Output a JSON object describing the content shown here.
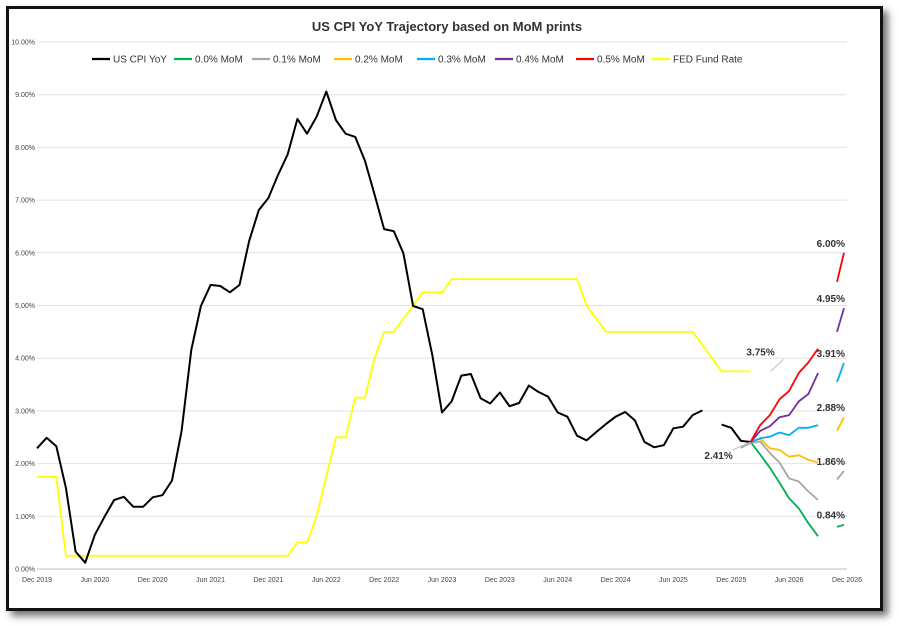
{
  "chart_data": {
    "type": "line",
    "title": "US CPI YoY Trajectory based on MoM prints",
    "xlabel": "",
    "ylabel": "",
    "ylim": [
      0,
      10
    ],
    "y_ticks": [
      "0.00%",
      "1.00%",
      "2.00%",
      "3.00%",
      "4.00%",
      "5.00%",
      "6.00%",
      "7.00%",
      "8.00%",
      "9.00%",
      "10.00%"
    ],
    "x_range_months": [
      0,
      84
    ],
    "x_ticks": [
      {
        "m": 0,
        "label": "Dec 2019"
      },
      {
        "m": 6,
        "label": "Jun 2020"
      },
      {
        "m": 12,
        "label": "Dec 2020"
      },
      {
        "m": 18,
        "label": "Jun 2021"
      },
      {
        "m": 24,
        "label": "Dec 2021"
      },
      {
        "m": 30,
        "label": "Jun 2022"
      },
      {
        "m": 36,
        "label": "Dec 2022"
      },
      {
        "m": 42,
        "label": "Jun 2023"
      },
      {
        "m": 48,
        "label": "Dec 2023"
      },
      {
        "m": 54,
        "label": "Jun 2024"
      },
      {
        "m": 60,
        "label": "Dec 2024"
      },
      {
        "m": 66,
        "label": "Jun 2025"
      },
      {
        "m": 72,
        "label": "Dec 2025"
      },
      {
        "m": 78,
        "label": "Jun 2026"
      },
      {
        "m": 84,
        "label": "Dec 2026"
      }
    ],
    "series": [
      {
        "name": "US CPI YoY",
        "color": "#000000",
        "start": 0,
        "values": [
          2.29,
          2.49,
          2.33,
          1.54,
          0.33,
          0.12,
          0.65,
          0.99,
          1.31,
          1.37,
          1.18,
          1.18,
          1.36,
          1.4,
          1.68,
          2.62,
          4.16,
          4.99,
          5.39,
          5.37,
          5.25,
          5.39,
          6.22,
          6.81,
          7.04,
          7.48,
          7.87,
          8.54,
          8.26,
          8.58,
          9.06,
          8.52,
          8.26,
          8.2,
          7.75,
          7.11,
          6.45,
          6.41,
          5.99,
          4.99,
          4.93,
          4.05,
          2.97,
          3.18,
          3.67,
          3.7,
          3.24,
          3.14,
          3.35,
          3.09,
          3.15,
          3.48,
          3.36,
          3.27,
          2.97,
          2.89,
          2.53,
          2.44,
          2.6,
          2.75,
          2.89,
          2.98,
          2.82,
          2.41,
          2.31,
          2.35,
          2.67,
          2.7,
          2.92,
          3.01
        ]
      },
      {
        "name": "US CPI YoY (recent)",
        "legend": false,
        "color": "#000000",
        "start": 71,
        "values": [
          2.74,
          2.68,
          2.43,
          2.41
        ]
      },
      {
        "name": "0.0% MoM",
        "color": "#00b050",
        "start": 74,
        "values": [
          2.41,
          2.17,
          1.92,
          1.64,
          1.34,
          1.15,
          0.87,
          0.62
        ]
      },
      {
        "name": "0.1% MoM",
        "color": "#a6a6a6",
        "start": 73,
        "values": [
          2.3,
          2.39,
          2.42,
          2.2,
          2.02,
          1.72,
          1.66,
          1.47,
          1.31
        ]
      },
      {
        "name": "0.2% MoM",
        "color": "#ffc000",
        "start": 74,
        "values": [
          2.41,
          2.47,
          2.29,
          2.26,
          2.13,
          2.16,
          2.07,
          2.02
        ]
      },
      {
        "name": "0.3% MoM",
        "color": "#00b0f0",
        "start": 74,
        "values": [
          2.41,
          2.48,
          2.51,
          2.59,
          2.54,
          2.68,
          2.68,
          2.73
        ]
      },
      {
        "name": "0.4% MoM",
        "color": "#7030a0",
        "start": 74,
        "values": [
          2.41,
          2.62,
          2.71,
          2.88,
          2.92,
          3.18,
          3.32,
          3.72
        ]
      },
      {
        "name": "0.5% MoM",
        "color": "#ff0000",
        "start": 74,
        "values": [
          2.41,
          2.73,
          2.92,
          3.22,
          3.38,
          3.72,
          3.92,
          4.18
        ]
      },
      {
        "name": "FED Fund Rate",
        "color": "#ffff00",
        "start": 0,
        "values": [
          1.75,
          1.75,
          1.75,
          0.25,
          0.25,
          0.25,
          0.25,
          0.25,
          0.25,
          0.25,
          0.25,
          0.25,
          0.25,
          0.25,
          0.25,
          0.25,
          0.25,
          0.25,
          0.25,
          0.25,
          0.25,
          0.25,
          0.25,
          0.25,
          0.25,
          0.25,
          0.25,
          0.5,
          0.5,
          1.0,
          1.75,
          2.5,
          2.5,
          3.25,
          3.25,
          4.0,
          4.5,
          4.5,
          4.75,
          5.0,
          5.25,
          5.25,
          5.25,
          5.5,
          5.5,
          5.5,
          5.5,
          5.5,
          5.5,
          5.5,
          5.5,
          5.5,
          5.5,
          5.5,
          5.5,
          5.5,
          5.5,
          5.0,
          4.75,
          4.5,
          4.5,
          4.5,
          4.5,
          4.5,
          4.5,
          4.5,
          4.5,
          4.5,
          4.5,
          4.25,
          4.0,
          3.75,
          3.75,
          3.75,
          3.75
        ]
      }
    ],
    "end_points": [
      {
        "label": "6.00%",
        "color": "#ff0000",
        "m": 84,
        "values": [
          5.45,
          6.0
        ]
      },
      {
        "label": "4.95%",
        "color": "#7030a0",
        "m": 84,
        "values": [
          4.5,
          4.95
        ]
      },
      {
        "label": "3.91%",
        "color": "#00b0f0",
        "m": 84,
        "values": [
          3.55,
          3.91
        ]
      },
      {
        "label": "2.88%",
        "color": "#ffc000",
        "m": 84,
        "values": [
          2.62,
          2.88
        ]
      },
      {
        "label": "1.86%",
        "color": "#a6a6a6",
        "m": 84,
        "values": [
          1.7,
          1.86
        ]
      },
      {
        "label": "0.84%",
        "color": "#00b050",
        "m": 84,
        "values": [
          0.8,
          0.84
        ]
      }
    ],
    "annotations": [
      {
        "label": "3.75%",
        "m": 74,
        "y": 3.75,
        "color": "#c0c0c0"
      },
      {
        "label": "2.41%",
        "m": 74,
        "y": 2.41,
        "color": "#c0c0c0"
      }
    ]
  }
}
